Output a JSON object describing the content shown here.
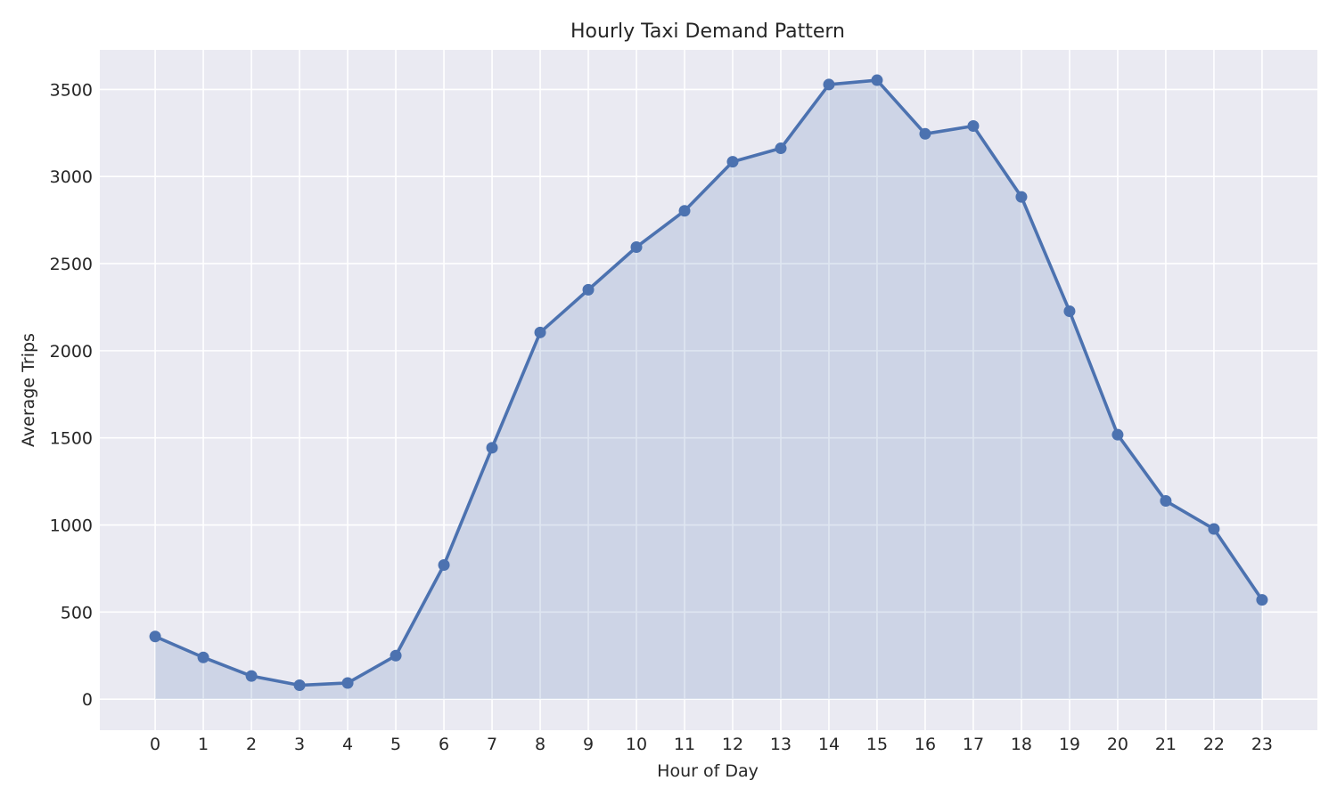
{
  "chart_data": {
    "type": "area",
    "title": "Hourly Taxi Demand Pattern",
    "xlabel": "Hour of Day",
    "ylabel": "Average Trips",
    "x": [
      0,
      1,
      2,
      3,
      4,
      5,
      6,
      7,
      8,
      9,
      10,
      11,
      12,
      13,
      14,
      15,
      16,
      17,
      18,
      19,
      20,
      21,
      22,
      23
    ],
    "series": [
      {
        "values": [
          360,
          240,
          133,
          80,
          93,
          250,
          770,
          1443,
          2105,
          2350,
          2595,
          2803,
          3085,
          3162,
          3528,
          3553,
          3245,
          3290,
          2883,
          2227,
          1518,
          1138,
          977,
          570
        ]
      }
    ],
    "xticks": [
      "0",
      "1",
      "2",
      "3",
      "4",
      "5",
      "6",
      "7",
      "8",
      "9",
      "10",
      "11",
      "12",
      "13",
      "14",
      "15",
      "16",
      "17",
      "18",
      "19",
      "20",
      "21",
      "22",
      "23"
    ],
    "yticks": [
      "0",
      "500",
      "1000",
      "1500",
      "2000",
      "2500",
      "3000",
      "3500"
    ],
    "ytick_values": [
      0,
      500,
      1000,
      1500,
      2000,
      2500,
      3000,
      3500
    ],
    "xlim": [
      -1.15,
      24.15
    ],
    "ylim": [
      -178,
      3727
    ],
    "grid": true,
    "colors": {
      "plot_background": "#eaeaf2",
      "grid": "#ffffff",
      "line": "#4c72b0",
      "fill": "#c8d0e4"
    }
  }
}
